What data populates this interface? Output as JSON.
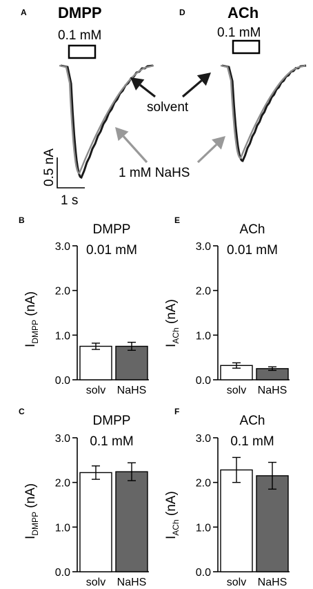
{
  "panels": {
    "A": {
      "letter": "A",
      "title": "DMPP",
      "conc": "0.1 mM"
    },
    "D": {
      "letter": "D",
      "title": "ACh",
      "conc": "0.1 mM"
    },
    "labels": {
      "solvent": "solvent",
      "nahs": "1 mM NaHS"
    },
    "scalebar": {
      "y": "0.5 nA",
      "x": "1 s"
    },
    "colors": {
      "solvent": "#1a1a1a",
      "nahs": "#8c8c8c",
      "nahs_arrow": "#999999",
      "bar_nahs": "#666666",
      "bar_solv": "#ffffff"
    }
  },
  "chart_data": [
    {
      "id": "B",
      "type": "bar",
      "letter": "B",
      "title": "DMPP",
      "subtitle": "0.01 mM",
      "ylabel_main": "I",
      "ylabel_sub": "DMPP",
      "ylabel_unit": " (nA)",
      "categories": [
        "solv",
        "NaHS"
      ],
      "values": [
        0.75,
        0.75
      ],
      "errors": [
        0.07,
        0.09
      ],
      "ylim": [
        0,
        3
      ],
      "yticks": [
        "0.0",
        "1.0",
        "2.0",
        "3.0"
      ]
    },
    {
      "id": "E",
      "type": "bar",
      "letter": "E",
      "title": "ACh",
      "subtitle": "0.01 mM",
      "ylabel_main": "I",
      "ylabel_sub": "ACh",
      "ylabel_unit": " (nA)",
      "categories": [
        "solv",
        "NaHS"
      ],
      "values": [
        0.32,
        0.25
      ],
      "errors": [
        0.06,
        0.04
      ],
      "ylim": [
        0,
        3
      ],
      "yticks": [
        "0.0",
        "1.0",
        "2.0",
        "3.0"
      ]
    },
    {
      "id": "C",
      "type": "bar",
      "letter": "C",
      "title": "DMPP",
      "subtitle": "0.1 mM",
      "ylabel_main": "I",
      "ylabel_sub": "DMPP",
      "ylabel_unit": " (nA)",
      "categories": [
        "solv",
        "NaHS"
      ],
      "values": [
        2.22,
        2.24
      ],
      "errors": [
        0.15,
        0.2
      ],
      "ylim": [
        0,
        3
      ],
      "yticks": [
        "0.0",
        "1.0",
        "2.0",
        "3.0"
      ]
    },
    {
      "id": "F",
      "type": "bar",
      "letter": "F",
      "title": "ACh",
      "subtitle": "0.1 mM",
      "ylabel_main": "I",
      "ylabel_sub": "ACh",
      "ylabel_unit": " (nA)",
      "categories": [
        "solv",
        "NaHS"
      ],
      "values": [
        2.28,
        2.15
      ],
      "errors": [
        0.28,
        0.3
      ],
      "ylim": [
        0,
        3
      ],
      "yticks": [
        "0.0",
        "1.0",
        "2.0",
        "3.0"
      ]
    }
  ]
}
